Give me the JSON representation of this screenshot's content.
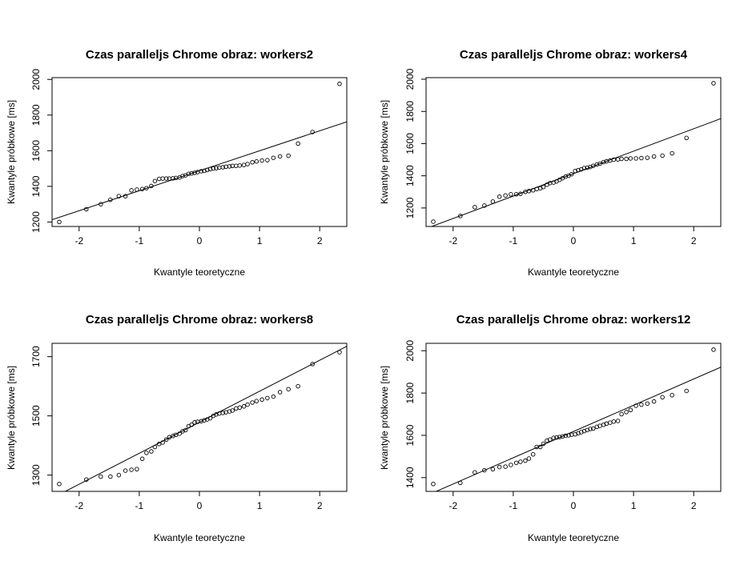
{
  "chart_data": [
    {
      "type": "scatter",
      "title": "Czas paralleljs Chrome obraz:  workers2",
      "xlabel": "Kwantyle teoretyczne",
      "ylabel": "Kwantyle próbkowe [ms]",
      "xlim": [
        -2.45,
        2.45
      ],
      "ylim": [
        1175,
        2010
      ],
      "xticks": [
        -2,
        -1,
        0,
        1,
        2
      ],
      "yticks": [
        1200,
        1400,
        1600,
        1800,
        2000
      ],
      "reference_line": {
        "x": [
          -2.45,
          2.45
        ],
        "y": [
          1213,
          1762
        ]
      },
      "points": [
        [
          -2.33,
          1200
        ],
        [
          -1.88,
          1272
        ],
        [
          -1.64,
          1300
        ],
        [
          -1.48,
          1325
        ],
        [
          -1.34,
          1345
        ],
        [
          -1.23,
          1345
        ],
        [
          -1.13,
          1378
        ],
        [
          -1.04,
          1382
        ],
        [
          -0.95,
          1385
        ],
        [
          -0.88,
          1390
        ],
        [
          -0.8,
          1402
        ],
        [
          -0.74,
          1430
        ],
        [
          -0.67,
          1442
        ],
        [
          -0.61,
          1444
        ],
        [
          -0.55,
          1444
        ],
        [
          -0.5,
          1444
        ],
        [
          -0.44,
          1445
        ],
        [
          -0.39,
          1447
        ],
        [
          -0.33,
          1450
        ],
        [
          -0.28,
          1458
        ],
        [
          -0.23,
          1462
        ],
        [
          -0.18,
          1470
        ],
        [
          -0.13,
          1473
        ],
        [
          -0.08,
          1476
        ],
        [
          -0.03,
          1480
        ],
        [
          0.03,
          1485
        ],
        [
          0.08,
          1487
        ],
        [
          0.13,
          1492
        ],
        [
          0.18,
          1497
        ],
        [
          0.23,
          1500
        ],
        [
          0.28,
          1502
        ],
        [
          0.33,
          1505
        ],
        [
          0.39,
          1507
        ],
        [
          0.44,
          1510
        ],
        [
          0.5,
          1512
        ],
        [
          0.55,
          1515
        ],
        [
          0.61,
          1515
        ],
        [
          0.67,
          1517
        ],
        [
          0.74,
          1520
        ],
        [
          0.8,
          1525
        ],
        [
          0.88,
          1535
        ],
        [
          0.95,
          1540
        ],
        [
          1.04,
          1545
        ],
        [
          1.13,
          1547
        ],
        [
          1.23,
          1560
        ],
        [
          1.34,
          1568
        ],
        [
          1.48,
          1572
        ],
        [
          1.64,
          1640
        ],
        [
          1.88,
          1705
        ],
        [
          2.33,
          1975
        ]
      ]
    },
    {
      "type": "scatter",
      "title": "Czas paralleljs Chrome obraz:  workers4",
      "xlabel": "Kwantyle teoretyczne",
      "ylabel": "Kwantyle próbkowe [ms]",
      "xlim": [
        -2.45,
        2.45
      ],
      "ylim": [
        1085,
        2010
      ],
      "xticks": [
        -2,
        -1,
        0,
        1,
        2
      ],
      "yticks": [
        1200,
        1400,
        1600,
        1800,
        2000
      ],
      "reference_line": {
        "x": [
          -2.45,
          2.45
        ],
        "y": [
          1072,
          1755
        ]
      },
      "points": [
        [
          -2.33,
          1115
        ],
        [
          -1.88,
          1150
        ],
        [
          -1.64,
          1205
        ],
        [
          -1.48,
          1215
        ],
        [
          -1.34,
          1240
        ],
        [
          -1.23,
          1270
        ],
        [
          -1.13,
          1278
        ],
        [
          -1.04,
          1285
        ],
        [
          -0.95,
          1285
        ],
        [
          -0.88,
          1288
        ],
        [
          -0.8,
          1300
        ],
        [
          -0.74,
          1305
        ],
        [
          -0.67,
          1310
        ],
        [
          -0.61,
          1318
        ],
        [
          -0.55,
          1322
        ],
        [
          -0.5,
          1330
        ],
        [
          -0.44,
          1345
        ],
        [
          -0.39,
          1355
        ],
        [
          -0.33,
          1358
        ],
        [
          -0.28,
          1365
        ],
        [
          -0.23,
          1375
        ],
        [
          -0.18,
          1385
        ],
        [
          -0.13,
          1395
        ],
        [
          -0.08,
          1400
        ],
        [
          -0.03,
          1410
        ],
        [
          0.03,
          1430
        ],
        [
          0.08,
          1435
        ],
        [
          0.13,
          1440
        ],
        [
          0.18,
          1448
        ],
        [
          0.23,
          1450
        ],
        [
          0.28,
          1455
        ],
        [
          0.33,
          1462
        ],
        [
          0.39,
          1470
        ],
        [
          0.44,
          1475
        ],
        [
          0.5,
          1485
        ],
        [
          0.55,
          1490
        ],
        [
          0.61,
          1495
        ],
        [
          0.67,
          1500
        ],
        [
          0.74,
          1502
        ],
        [
          0.8,
          1505
        ],
        [
          0.88,
          1505
        ],
        [
          0.95,
          1508
        ],
        [
          1.04,
          1508
        ],
        [
          1.13,
          1510
        ],
        [
          1.23,
          1512
        ],
        [
          1.34,
          1520
        ],
        [
          1.48,
          1525
        ],
        [
          1.64,
          1540
        ],
        [
          1.88,
          1635
        ],
        [
          2.33,
          1975
        ]
      ]
    },
    {
      "type": "scatter",
      "title": "Czas paralleljs Chrome obraz:  workers8",
      "xlabel": "Kwantyle teoretyczne",
      "ylabel": "Kwantyle próbkowe [ms]",
      "xlim": [
        -2.45,
        2.45
      ],
      "ylim": [
        1245,
        1745
      ],
      "xticks": [
        -2,
        -1,
        0,
        1,
        2
      ],
      "yticks": [
        1300,
        1500,
        1700
      ],
      "reference_line": {
        "x": [
          -2.45,
          2.45
        ],
        "y": [
          1222,
          1735
        ]
      },
      "points": [
        [
          -2.33,
          1270
        ],
        [
          -1.88,
          1285
        ],
        [
          -1.64,
          1295
        ],
        [
          -1.48,
          1295
        ],
        [
          -1.34,
          1300
        ],
        [
          -1.23,
          1315
        ],
        [
          -1.13,
          1318
        ],
        [
          -1.04,
          1320
        ],
        [
          -0.95,
          1355
        ],
        [
          -0.88,
          1375
        ],
        [
          -0.8,
          1380
        ],
        [
          -0.74,
          1395
        ],
        [
          -0.67,
          1405
        ],
        [
          -0.61,
          1410
        ],
        [
          -0.55,
          1420
        ],
        [
          -0.5,
          1428
        ],
        [
          -0.44,
          1432
        ],
        [
          -0.39,
          1436
        ],
        [
          -0.33,
          1440
        ],
        [
          -0.28,
          1448
        ],
        [
          -0.23,
          1452
        ],
        [
          -0.18,
          1465
        ],
        [
          -0.13,
          1470
        ],
        [
          -0.08,
          1478
        ],
        [
          -0.03,
          1480
        ],
        [
          0.03,
          1482
        ],
        [
          0.08,
          1485
        ],
        [
          0.13,
          1488
        ],
        [
          0.18,
          1492
        ],
        [
          0.23,
          1500
        ],
        [
          0.28,
          1505
        ],
        [
          0.33,
          1508
        ],
        [
          0.39,
          1510
        ],
        [
          0.44,
          1512
        ],
        [
          0.5,
          1515
        ],
        [
          0.55,
          1518
        ],
        [
          0.61,
          1525
        ],
        [
          0.67,
          1528
        ],
        [
          0.74,
          1532
        ],
        [
          0.8,
          1538
        ],
        [
          0.88,
          1545
        ],
        [
          0.95,
          1550
        ],
        [
          1.04,
          1555
        ],
        [
          1.13,
          1560
        ],
        [
          1.23,
          1565
        ],
        [
          1.34,
          1580
        ],
        [
          1.48,
          1590
        ],
        [
          1.64,
          1600
        ],
        [
          1.88,
          1675
        ],
        [
          2.33,
          1715
        ]
      ]
    },
    {
      "type": "scatter",
      "title": "Czas paralleljs Chrome obraz:  workers12",
      "xlabel": "Kwantyle teoretyczne",
      "ylabel": "Kwantyle próbkowe [ms]",
      "xlim": [
        -2.45,
        2.45
      ],
      "ylim": [
        1335,
        2035
      ],
      "xticks": [
        -2,
        -1,
        0,
        1,
        2
      ],
      "yticks": [
        1400,
        1600,
        1800,
        2000
      ],
      "reference_line": {
        "x": [
          -2.45,
          2.45
        ],
        "y": [
          1314,
          1922
        ]
      },
      "points": [
        [
          -2.33,
          1370
        ],
        [
          -1.88,
          1375
        ],
        [
          -1.64,
          1425
        ],
        [
          -1.48,
          1435
        ],
        [
          -1.34,
          1440
        ],
        [
          -1.23,
          1450
        ],
        [
          -1.13,
          1452
        ],
        [
          -1.04,
          1460
        ],
        [
          -0.95,
          1470
        ],
        [
          -0.88,
          1475
        ],
        [
          -0.8,
          1480
        ],
        [
          -0.74,
          1490
        ],
        [
          -0.67,
          1510
        ],
        [
          -0.61,
          1545
        ],
        [
          -0.55,
          1545
        ],
        [
          -0.5,
          1560
        ],
        [
          -0.44,
          1575
        ],
        [
          -0.39,
          1580
        ],
        [
          -0.33,
          1588
        ],
        [
          -0.28,
          1590
        ],
        [
          -0.23,
          1592
        ],
        [
          -0.18,
          1595
        ],
        [
          -0.13,
          1598
        ],
        [
          -0.08,
          1600
        ],
        [
          -0.03,
          1603
        ],
        [
          0.03,
          1605
        ],
        [
          0.08,
          1610
        ],
        [
          0.13,
          1615
        ],
        [
          0.18,
          1620
        ],
        [
          0.23,
          1625
        ],
        [
          0.28,
          1630
        ],
        [
          0.33,
          1632
        ],
        [
          0.39,
          1640
        ],
        [
          0.44,
          1645
        ],
        [
          0.5,
          1650
        ],
        [
          0.55,
          1655
        ],
        [
          0.61,
          1660
        ],
        [
          0.67,
          1665
        ],
        [
          0.74,
          1668
        ],
        [
          0.8,
          1700
        ],
        [
          0.88,
          1710
        ],
        [
          0.95,
          1720
        ],
        [
          1.04,
          1740
        ],
        [
          1.13,
          1745
        ],
        [
          1.23,
          1750
        ],
        [
          1.34,
          1760
        ],
        [
          1.48,
          1780
        ],
        [
          1.64,
          1790
        ],
        [
          1.88,
          1810
        ],
        [
          2.33,
          2005
        ]
      ]
    }
  ]
}
